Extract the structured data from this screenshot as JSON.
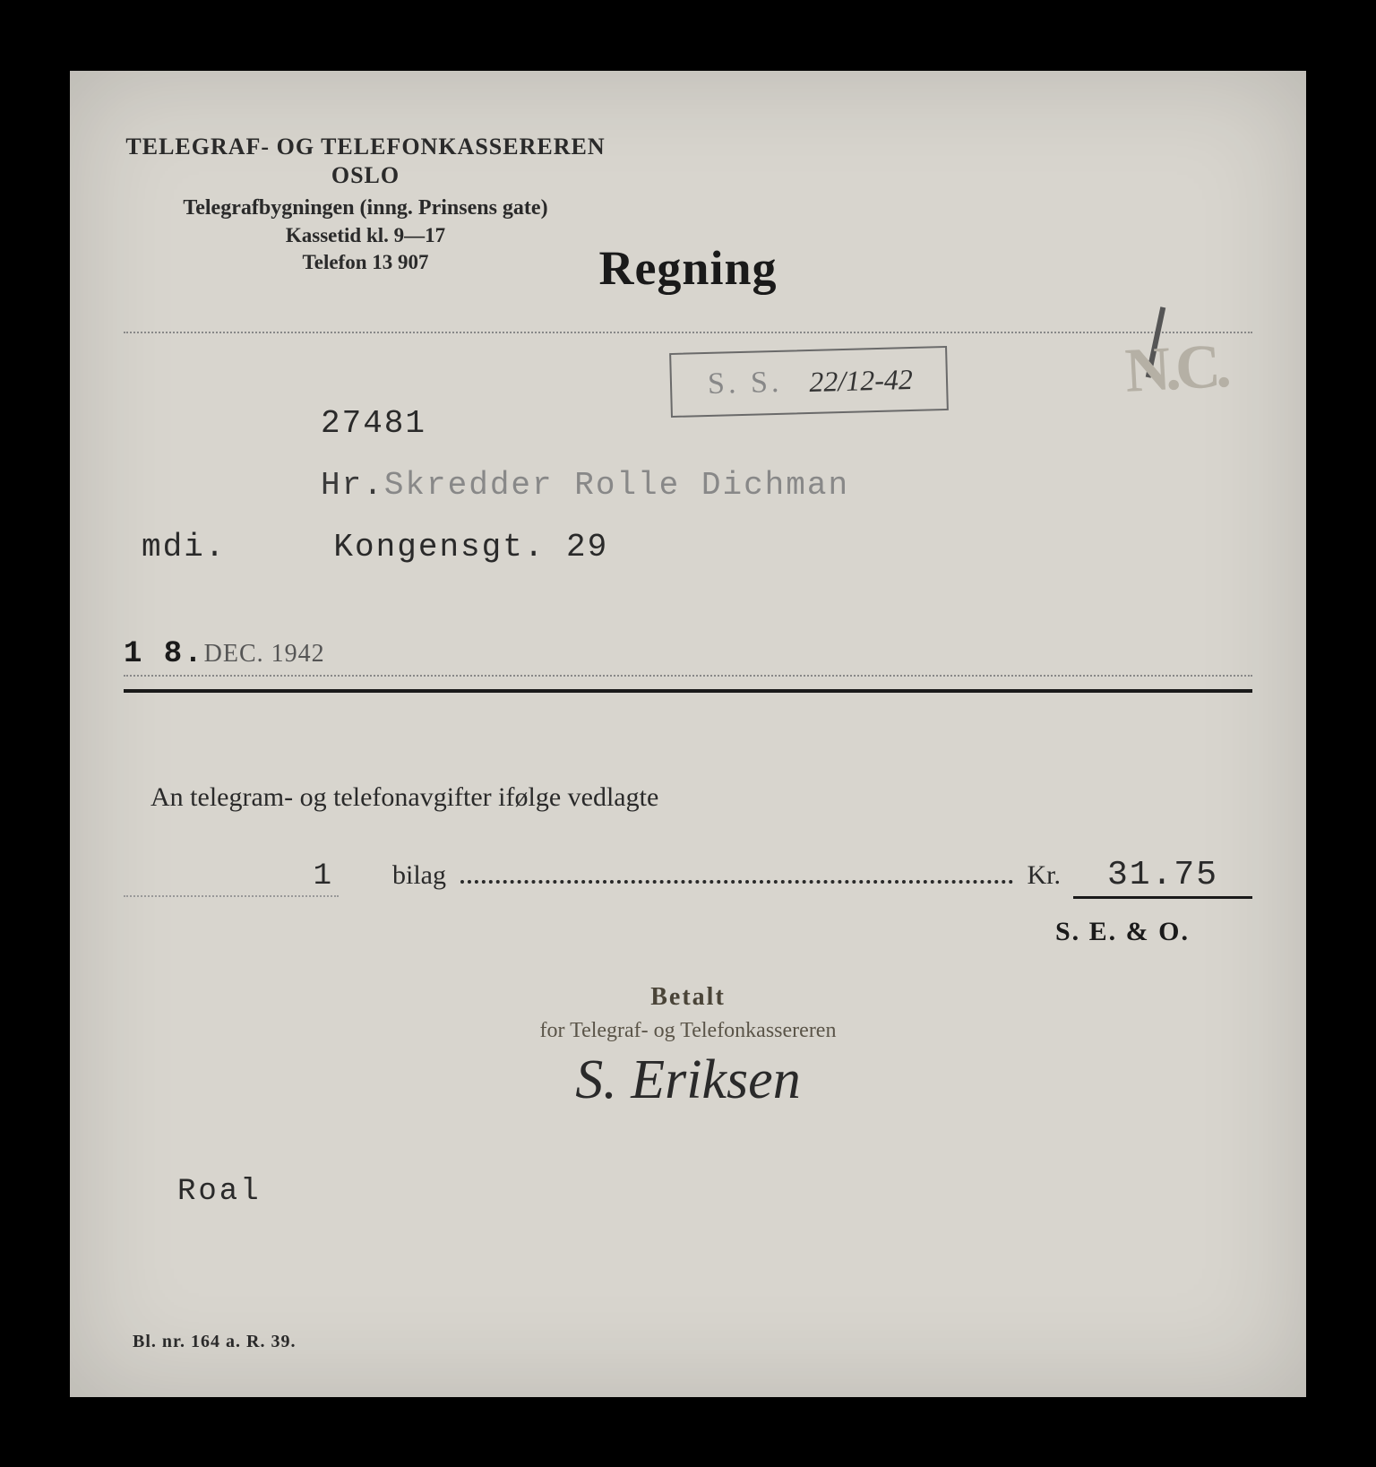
{
  "colors": {
    "page_bg": "#000000",
    "paper_bg": "#d8d5ce",
    "ink": "#2a2a2a",
    "ink_dark": "#1a1a1a",
    "ink_faded": "#888888",
    "stamp_border": "#6a6a6a",
    "stamp_ink": "#555555",
    "nc_gray": "#b5b0a5",
    "brown_stamp": "#4a4438"
  },
  "typography": {
    "serif_family": "Georgia, Times New Roman, serif",
    "mono_family": "Courier New, monospace",
    "script_family": "Brush Script MT, cursive",
    "header_size_pt": 20,
    "title_size_pt": 40,
    "body_size_pt": 22,
    "mono_size_pt": 26,
    "signature_size_pt": 46
  },
  "header": {
    "line1": "TELEGRAF- OG TELEFONKASSEREREN",
    "line2": "OSLO",
    "line3": "Telegrafbygningen (inng. Prinsens gate)",
    "line4": "Kassetid kl. 9—17",
    "line5": "Telefon 13 907"
  },
  "title": "Regning",
  "receipt_stamp": {
    "prefix": "S. S.",
    "date": "22/12-42"
  },
  "corner_mark": "N.C.",
  "account_number": "27481",
  "recipient": {
    "prefix": "Hr.",
    "name": "Skredder Rolle Dichman",
    "code": "mdi.",
    "street": "Kongensgt. 29"
  },
  "date": {
    "day": "1 8.",
    "month_year": "DEC. 1942"
  },
  "body_line": "An telegram- og telefonavgifter ifølge vedlagte",
  "bilag": {
    "count": "1",
    "label": "bilag",
    "currency": "Kr.",
    "amount": "31.75"
  },
  "seo": "S. E. & O.",
  "paid_stamp": {
    "betalt": "Betalt",
    "for_line": "for Telegraf- og Telefonkassereren",
    "signature": "S. Eriksen"
  },
  "clerk": "Roal",
  "form_number": "Bl. nr. 164 a.   R. 39."
}
